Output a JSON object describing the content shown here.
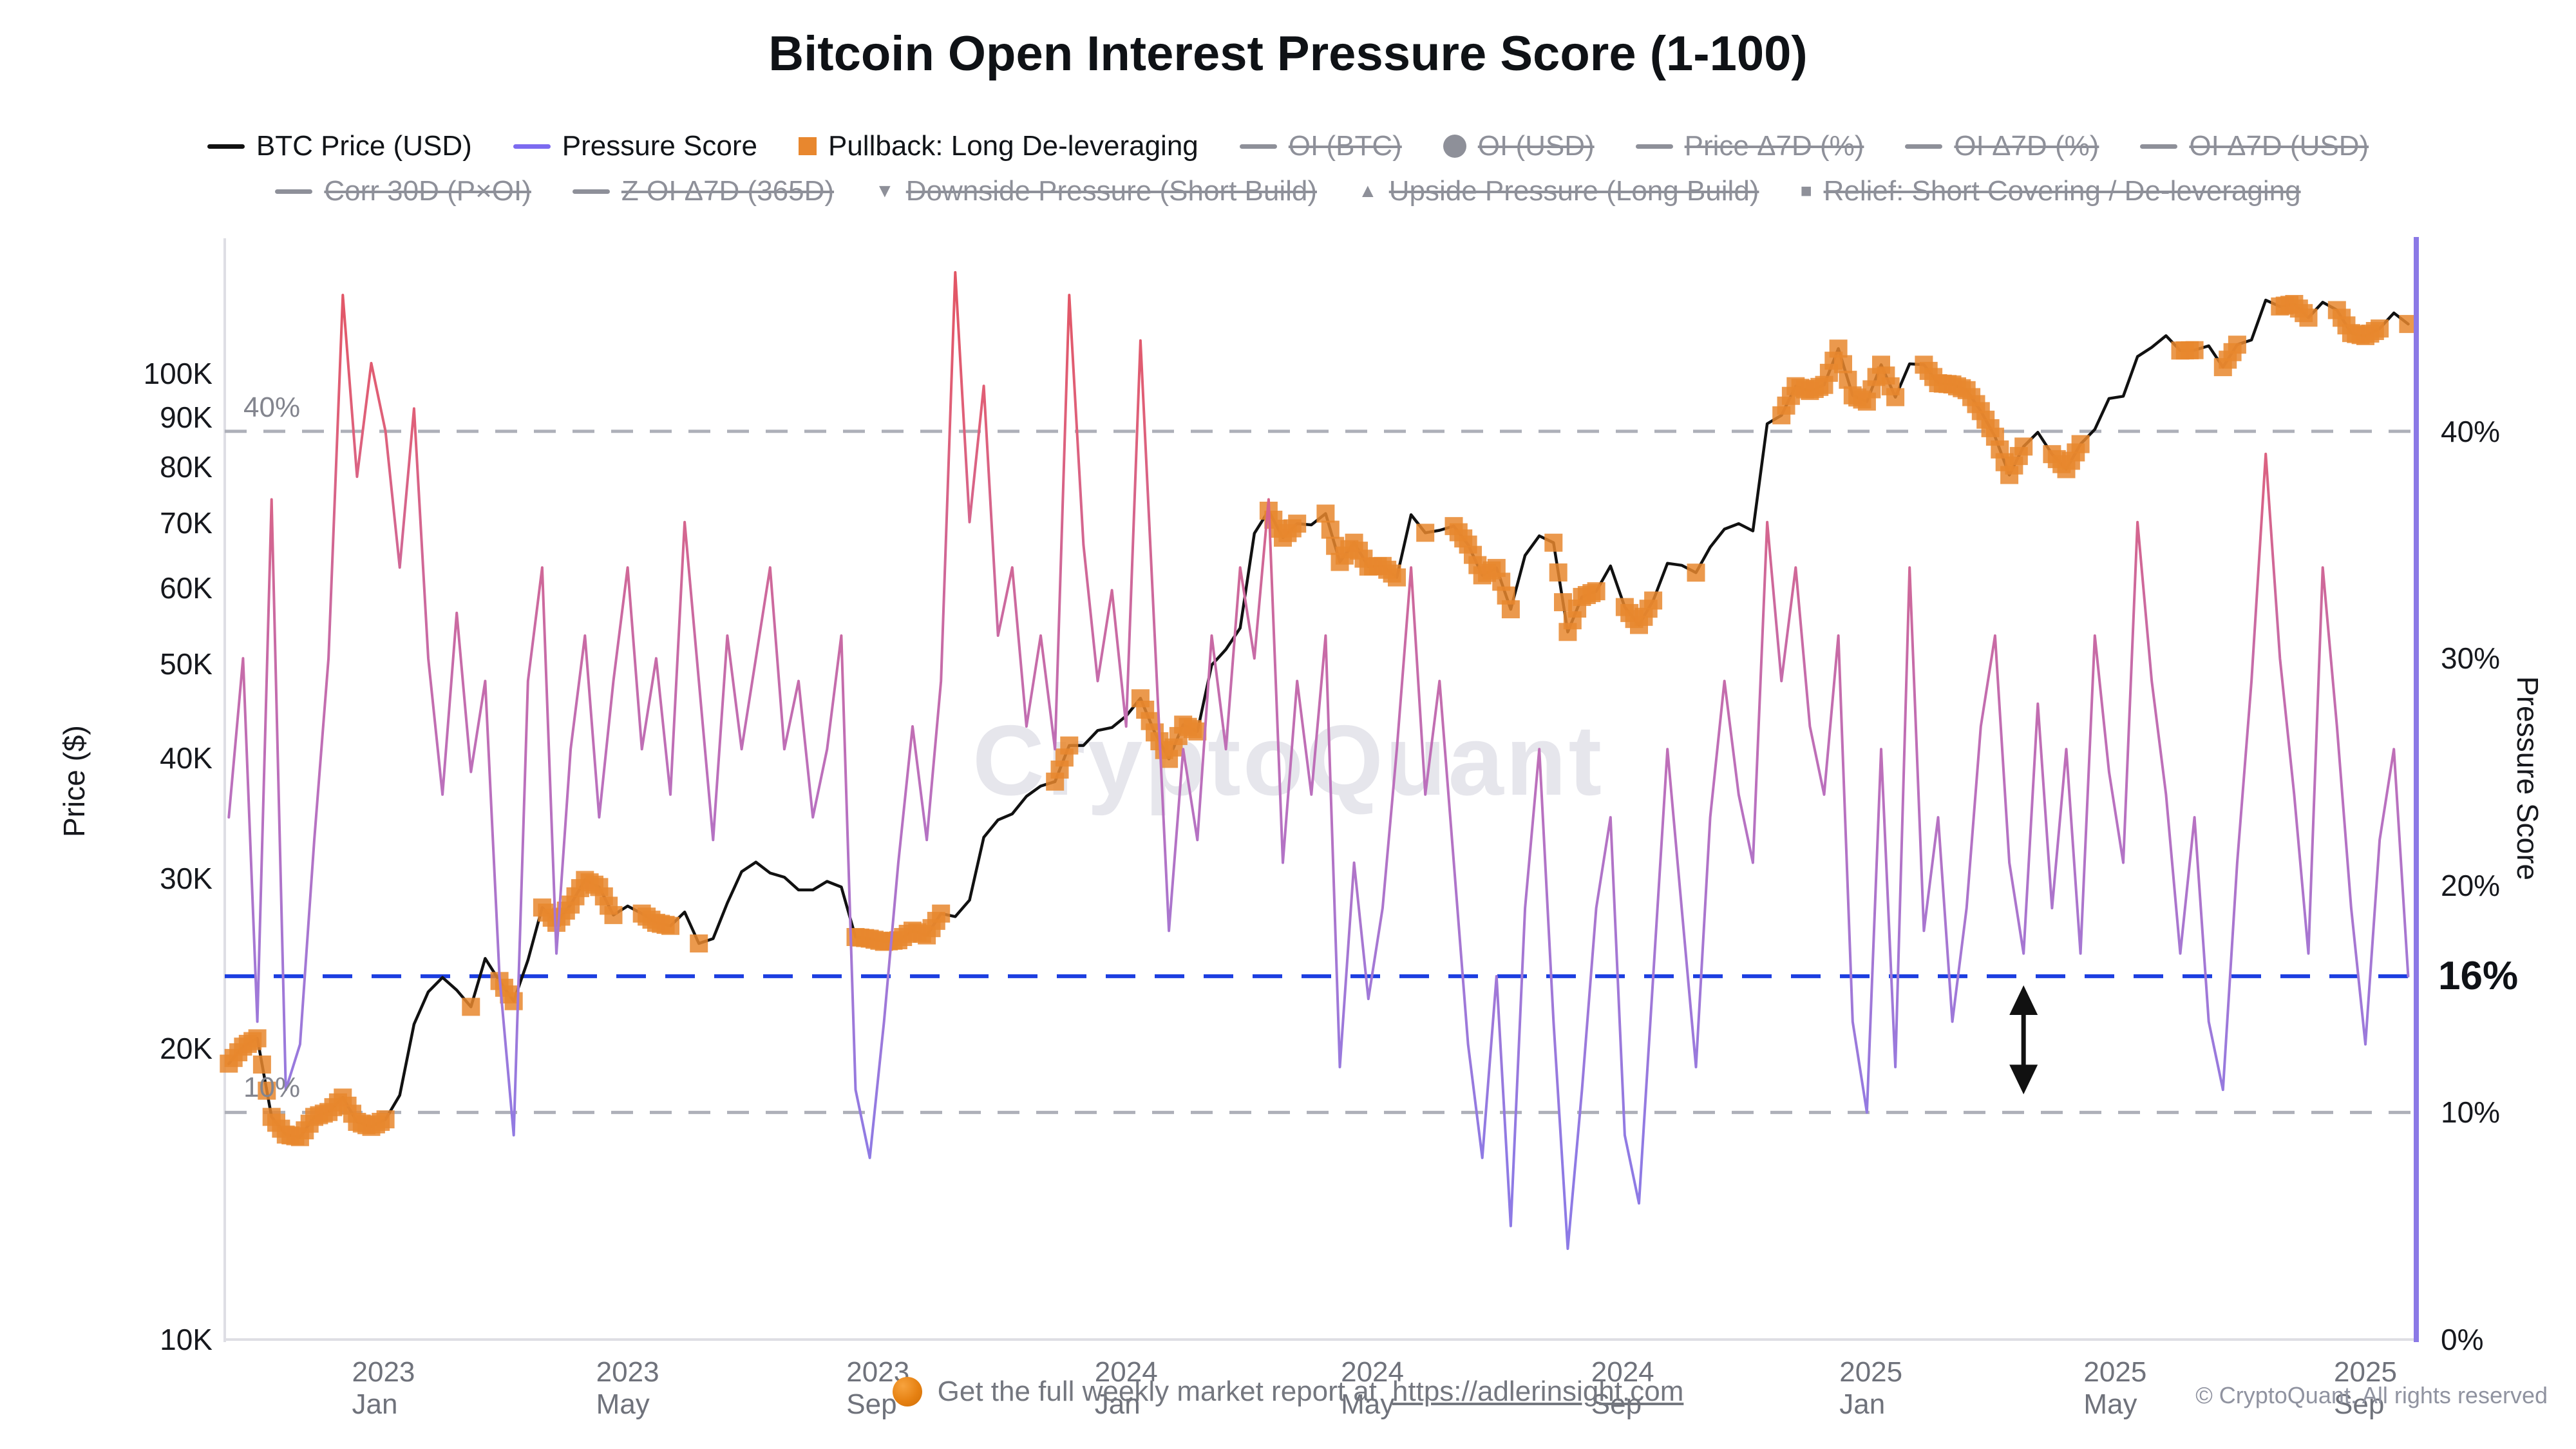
{
  "title": "Bitcoin Open Interest Pressure Score (1-100)",
  "watermark": "CryptoQuant",
  "footer": {
    "text": "Get the full weekly market report at",
    "link": "https://adlerinsight.com",
    "copyright": "© CryptoQuant. All rights reserved"
  },
  "legend": {
    "row1": [
      {
        "label": "BTC Price (USD)",
        "swatch": "line",
        "color": "#111111",
        "active": true
      },
      {
        "label": "Pressure Score",
        "swatch": "line",
        "color": "#7c6bf0",
        "active": true
      },
      {
        "label": "Pullback: Long De-leveraging",
        "swatch": "square",
        "color": "#e8872e",
        "active": true
      },
      {
        "label": "OI (BTC)",
        "swatch": "line",
        "active": false
      },
      {
        "label": "OI (USD)",
        "swatch": "circle",
        "active": false
      },
      {
        "label": "Price Δ7D (%)",
        "swatch": "line",
        "active": false
      },
      {
        "label": "OI Δ7D (%)",
        "swatch": "line",
        "active": false
      },
      {
        "label": "OI Δ7D (USD)",
        "swatch": "line",
        "active": false
      }
    ],
    "row2": [
      {
        "label": "Corr 30D (P×OI)",
        "swatch": "line",
        "active": false
      },
      {
        "label": "Z OI Δ7D (365D)",
        "swatch": "line",
        "active": false
      },
      {
        "label": "Downside Pressure (Short Build)",
        "swatch": "tri-down",
        "active": false
      },
      {
        "label": "Upside Pressure (Long Build)",
        "swatch": "tri-up",
        "active": false
      },
      {
        "label": "Relief: Short Covering / De-leveraging",
        "swatch": "square-small",
        "active": false
      }
    ]
  },
  "axis_titles": {
    "left": "Price ($)",
    "right": "Pressure Score"
  },
  "chart_data": {
    "type": "line",
    "title": "Bitcoin Open Interest Pressure Score (1-100)",
    "x_domain": [
      "2022-10-15",
      "2025-09-26"
    ],
    "x_axis": {
      "ticks": [
        {
          "date": "2023-01-01",
          "label": "2023 Jan"
        },
        {
          "date": "2023-05-01",
          "label": "2023 May"
        },
        {
          "date": "2023-09-01",
          "label": "2023 Sep"
        },
        {
          "date": "2024-01-01",
          "label": "2024 Jan"
        },
        {
          "date": "2024-05-01",
          "label": "2024 May"
        },
        {
          "date": "2024-09-01",
          "label": "2024 Sep"
        },
        {
          "date": "2025-01-01",
          "label": "2025 Jan"
        },
        {
          "date": "2025-05-01",
          "label": "2025 May"
        },
        {
          "date": "2025-09-01",
          "label": "2025 Sep"
        }
      ]
    },
    "price_axis": {
      "scale": "log",
      "min": 10000,
      "max": 138000,
      "tick_values": [
        10000,
        20000,
        30000,
        40000,
        50000,
        60000,
        70000,
        80000,
        90000,
        100000
      ],
      "tick_labels": [
        "10K",
        "20K",
        "30K",
        "40K",
        "50K",
        "60K",
        "70K",
        "80K",
        "90K",
        "100K"
      ]
    },
    "pressure_axis": {
      "scale": "linear",
      "min": 0,
      "max": 48.5,
      "tick_values": [
        0,
        10,
        20,
        30,
        40
      ],
      "tick_labels": [
        "0%",
        "10%",
        "20%",
        "30%",
        "40%"
      ],
      "current_value": 16,
      "current_label": "16%",
      "upper_band_value": 40,
      "upper_band_label": "40%",
      "lower_band_value": 10,
      "lower_band_label": "10%"
    },
    "dates": [
      "2022-10-17",
      "2022-10-24",
      "2022-10-31",
      "2022-11-07",
      "2022-11-14",
      "2022-11-21",
      "2022-11-28",
      "2022-12-05",
      "2022-12-12",
      "2022-12-19",
      "2022-12-26",
      "2023-01-02",
      "2023-01-09",
      "2023-01-16",
      "2023-01-23",
      "2023-01-30",
      "2023-02-06",
      "2023-02-13",
      "2023-02-20",
      "2023-02-27",
      "2023-03-06",
      "2023-03-13",
      "2023-03-20",
      "2023-03-27",
      "2023-04-03",
      "2023-04-10",
      "2023-04-17",
      "2023-04-24",
      "2023-05-01",
      "2023-05-08",
      "2023-05-15",
      "2023-05-22",
      "2023-05-29",
      "2023-06-05",
      "2023-06-12",
      "2023-06-19",
      "2023-06-26",
      "2023-07-03",
      "2023-07-10",
      "2023-07-17",
      "2023-07-24",
      "2023-07-31",
      "2023-08-07",
      "2023-08-14",
      "2023-08-21",
      "2023-08-28",
      "2023-09-04",
      "2023-09-11",
      "2023-09-18",
      "2023-09-25",
      "2023-10-02",
      "2023-10-09",
      "2023-10-16",
      "2023-10-23",
      "2023-10-30",
      "2023-11-06",
      "2023-11-13",
      "2023-11-20",
      "2023-11-27",
      "2023-12-04",
      "2023-12-11",
      "2023-12-18",
      "2023-12-25",
      "2024-01-01",
      "2024-01-08",
      "2024-01-15",
      "2024-01-22",
      "2024-01-29",
      "2024-02-05",
      "2024-02-12",
      "2024-02-19",
      "2024-02-26",
      "2024-03-04",
      "2024-03-11",
      "2024-03-18",
      "2024-03-25",
      "2024-04-01",
      "2024-04-08",
      "2024-04-15",
      "2024-04-22",
      "2024-04-29",
      "2024-05-06",
      "2024-05-13",
      "2024-05-20",
      "2024-05-27",
      "2024-06-03",
      "2024-06-10",
      "2024-06-17",
      "2024-06-24",
      "2024-07-01",
      "2024-07-08",
      "2024-07-15",
      "2024-07-22",
      "2024-07-29",
      "2024-08-05",
      "2024-08-12",
      "2024-08-19",
      "2024-08-26",
      "2024-09-02",
      "2024-09-09",
      "2024-09-16",
      "2024-09-23",
      "2024-09-30",
      "2024-10-07",
      "2024-10-14",
      "2024-10-21",
      "2024-10-28",
      "2024-11-04",
      "2024-11-11",
      "2024-11-18",
      "2024-11-25",
      "2024-12-02",
      "2024-12-09",
      "2024-12-16",
      "2024-12-23",
      "2024-12-30",
      "2025-01-06",
      "2025-01-13",
      "2025-01-20",
      "2025-01-27",
      "2025-02-03",
      "2025-02-10",
      "2025-02-17",
      "2025-02-24",
      "2025-03-03",
      "2025-03-10",
      "2025-03-17",
      "2025-03-24",
      "2025-03-31",
      "2025-04-07",
      "2025-04-14",
      "2025-04-21",
      "2025-04-28",
      "2025-05-05",
      "2025-05-12",
      "2025-05-19",
      "2025-05-26",
      "2025-06-02",
      "2025-06-09",
      "2025-06-16",
      "2025-06-23",
      "2025-06-30",
      "2025-07-07",
      "2025-07-14",
      "2025-07-21",
      "2025-07-28",
      "2025-08-04",
      "2025-08-11",
      "2025-08-18",
      "2025-08-25",
      "2025-09-01",
      "2025-09-08",
      "2025-09-15",
      "2025-09-22"
    ],
    "series": [
      {
        "name": "BTC Price (USD)",
        "yaxis": "price",
        "color": "#111111",
        "values": [
          19300,
          20100,
          20500,
          17000,
          16300,
          16200,
          17000,
          17200,
          17800,
          16800,
          16600,
          16900,
          17900,
          21200,
          22900,
          23700,
          23000,
          22100,
          24800,
          23500,
          22400,
          24700,
          28000,
          27000,
          28200,
          29900,
          29400,
          27500,
          28100,
          27600,
          27000,
          26800,
          27700,
          25700,
          26000,
          28300,
          30500,
          31200,
          30400,
          30100,
          29200,
          29200,
          29800,
          29400,
          26100,
          26000,
          25800,
          25900,
          26500,
          26200,
          27600,
          27400,
          28500,
          33100,
          34500,
          35000,
          36500,
          37400,
          37800,
          41200,
          41200,
          42700,
          43000,
          44200,
          46100,
          42500,
          39900,
          43300,
          42600,
          49900,
          51800,
          54500,
          68300,
          72100,
          67600,
          69900,
          69700,
          71600,
          63800,
          66800,
          63100,
          63200,
          61500,
          71400,
          68400,
          68800,
          69500,
          66500,
          61800,
          62900,
          57000,
          64800,
          67900,
          66800,
          54000,
          58700,
          59500,
          63200,
          57300,
          54900,
          58200,
          63600,
          63300,
          62200,
          66100,
          69000,
          69900,
          68700,
          88700,
          90500,
          97000,
          95900,
          97300,
          106100,
          94900,
          93500,
          102100,
          94500,
          102300,
          102100,
          97700,
          97400,
          96100,
          91400,
          86000,
          78500,
          84000,
          86900,
          82500,
          79600,
          84500,
          87500,
          94200,
          94700,
          104100,
          106400,
          109400,
          105600,
          105700,
          106800,
          101500,
          107100,
          108300,
          119100,
          117300,
          118000,
          114200,
          118500,
          116300,
          110100,
          109300,
          111300,
          115500,
          112500
        ]
      },
      {
        "name": "Pressure Score",
        "yaxis": "pressure",
        "gradient_top_to_bottom": [
          "#e3535f",
          "#df6079",
          "#cc699e",
          "#bb70bd",
          "#a278d6",
          "#8f7ae4",
          "#8a79e8"
        ],
        "values": [
          23,
          30,
          14,
          37,
          11,
          13,
          22,
          30,
          46,
          38,
          43,
          40,
          34,
          41,
          30,
          24,
          32,
          25,
          29,
          16,
          9,
          29,
          34,
          17,
          26,
          31,
          23,
          29,
          34,
          26,
          30,
          24,
          36,
          29,
          22,
          31,
          26,
          30,
          34,
          26,
          29,
          23,
          26,
          31,
          11,
          8,
          14,
          21,
          27,
          22,
          29,
          47,
          36,
          42,
          31,
          34,
          27,
          31,
          26,
          46,
          35,
          29,
          33,
          27,
          44,
          31,
          18,
          26,
          22,
          31,
          26,
          34,
          30,
          37,
          21,
          29,
          24,
          31,
          12,
          21,
          15,
          19,
          26,
          34,
          24,
          29,
          21,
          13,
          8,
          16,
          5,
          19,
          26,
          14,
          4,
          11,
          19,
          23,
          9,
          6,
          16,
          26,
          19,
          12,
          23,
          29,
          24,
          21,
          36,
          29,
          34,
          27,
          24,
          31,
          14,
          10,
          26,
          12,
          34,
          18,
          23,
          14,
          19,
          27,
          31,
          21,
          17,
          28,
          19,
          26,
          17,
          31,
          25,
          21,
          36,
          29,
          24,
          17,
          23,
          14,
          11,
          21,
          29,
          39,
          30,
          24,
          17,
          34,
          27,
          19,
          13,
          22,
          26,
          16
        ]
      }
    ],
    "pullback_marker_dates": [
      "2022-10-17",
      "2022-10-24",
      "2022-10-31",
      "2022-11-07",
      "2022-11-14",
      "2022-11-21",
      "2022-11-28",
      "2022-12-05",
      "2022-12-12",
      "2022-12-19",
      "2022-12-26",
      "2023-01-02",
      "2023-02-13",
      "2023-02-27",
      "2023-03-06",
      "2023-03-20",
      "2023-03-27",
      "2023-04-03",
      "2023-04-10",
      "2023-04-17",
      "2023-04-24",
      "2023-05-08",
      "2023-05-15",
      "2023-05-22",
      "2023-06-05",
      "2023-08-21",
      "2023-08-28",
      "2023-09-04",
      "2023-09-11",
      "2023-09-18",
      "2023-09-25",
      "2023-10-02",
      "2023-11-27",
      "2023-12-04",
      "2024-01-08",
      "2024-01-15",
      "2024-01-22",
      "2024-01-29",
      "2024-02-05",
      "2024-03-11",
      "2024-03-18",
      "2024-03-25",
      "2024-04-08",
      "2024-04-15",
      "2024-04-22",
      "2024-04-29",
      "2024-05-06",
      "2024-05-13",
      "2024-05-27",
      "2024-06-10",
      "2024-06-17",
      "2024-06-24",
      "2024-07-01",
      "2024-07-08",
      "2024-07-29",
      "2024-08-05",
      "2024-08-12",
      "2024-08-19",
      "2024-09-02",
      "2024-09-09",
      "2024-09-16",
      "2024-10-07",
      "2024-11-18",
      "2024-11-25",
      "2024-12-02",
      "2024-12-09",
      "2024-12-16",
      "2024-12-23",
      "2024-12-30",
      "2025-01-06",
      "2025-01-13",
      "2025-01-27",
      "2025-02-03",
      "2025-02-10",
      "2025-02-17",
      "2025-02-24",
      "2025-03-03",
      "2025-03-10",
      "2025-03-17",
      "2025-03-31",
      "2025-04-07",
      "2025-04-14",
      "2025-06-02",
      "2025-06-09",
      "2025-06-23",
      "2025-06-30",
      "2025-07-21",
      "2025-07-28",
      "2025-08-04",
      "2025-08-18",
      "2025-08-25",
      "2025-09-01",
      "2025-09-08",
      "2025-09-22"
    ],
    "style": {
      "marker_color": "#e8872e",
      "price_line_color": "#111111",
      "current_line_color": "#1c3ee0",
      "band_line_color": "#aeb0b9",
      "axis_line_color": "#dedee4",
      "right_axis_color": "#8b79e6",
      "annotation_arrow_color": "#111111"
    },
    "annotations": [
      {
        "type": "vertical-double-arrow",
        "date": "2025-03-17",
        "from_pct": 10.8,
        "to_pct": 15.6
      }
    ],
    "legend_position": "top",
    "grid": "off"
  }
}
